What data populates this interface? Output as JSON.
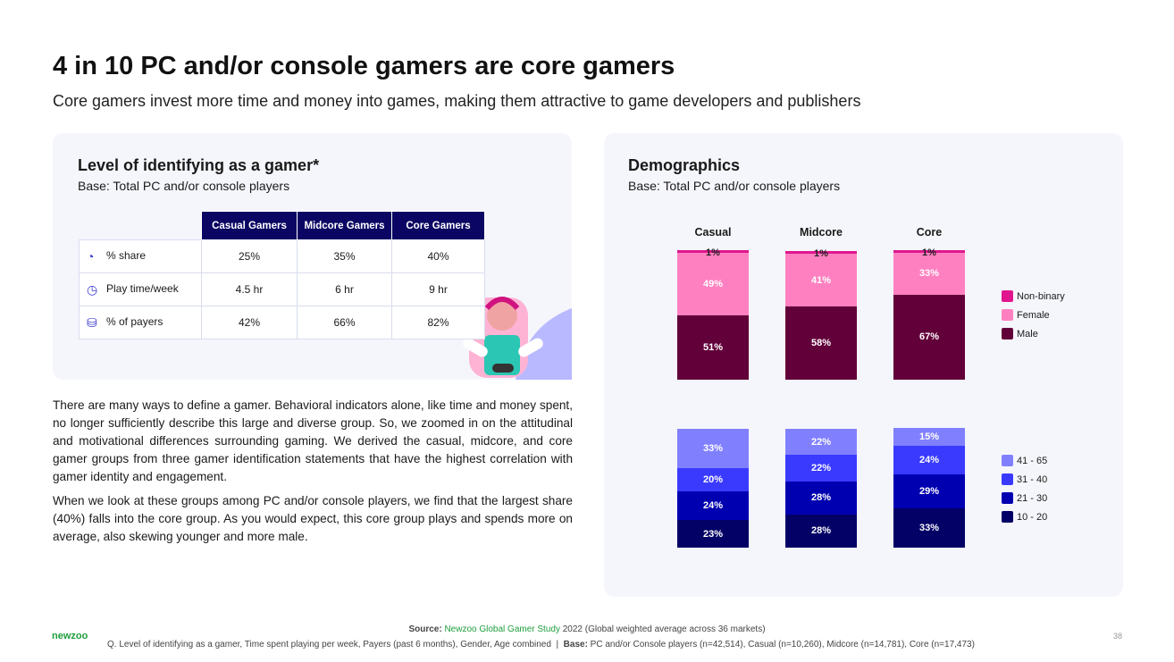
{
  "title": "4 in 10 PC and/or console gamers are core gamers",
  "subtitle": "Core gamers invest more time and money into games, making them attractive to game developers and publishers",
  "left_card": {
    "title": "Level of identifying as a gamer*",
    "base": "Base: Total PC and/or console players",
    "table": {
      "headers": [
        "Casual Gamers",
        "Midcore Gamers",
        "Core Gamers"
      ],
      "rows": [
        {
          "icon": "pie-chart-icon",
          "label": "% share",
          "values": [
            "25%",
            "35%",
            "40%"
          ]
        },
        {
          "icon": "clock-icon",
          "label": "Play time/week",
          "values": [
            "4.5 hr",
            "6 hr",
            "9 hr"
          ]
        },
        {
          "icon": "coins-icon",
          "label": "% of payers",
          "values": [
            "42%",
            "66%",
            "82%"
          ]
        }
      ]
    }
  },
  "body": [
    "There are many ways to define a gamer. Behavioral indicators alone, like time and money spent, no longer sufficiently describe this large and diverse group. So, we zoomed in on the attitudinal and motivational differences surrounding gaming. We derived the casual, midcore, and core gamer groups from three gamer identification statements that have the highest correlation with gamer identity and engagement.",
    "When we look at these groups among PC and/or console players, we find that the largest share (40%) falls into the core group. As you would expect, this core group plays and spends more on average, also skewing younger and more male."
  ],
  "right_card": {
    "title": "Demographics",
    "base": "Base: Total PC and/or console players"
  },
  "chart_data": [
    {
      "type": "bar",
      "stacked": true,
      "categories": [
        "Casual",
        "Midcore",
        "Core"
      ],
      "ylim": [
        0,
        100
      ],
      "series": [
        {
          "name": "Male",
          "color": "#62003a",
          "values": [
            51,
            58,
            67
          ]
        },
        {
          "name": "Female",
          "color": "#ff80c0",
          "values": [
            49,
            41,
            33
          ]
        },
        {
          "name": "Non-binary",
          "color": "#e0168f",
          "values": [
            1,
            1,
            1
          ]
        }
      ],
      "legend": "right"
    },
    {
      "type": "bar",
      "stacked": true,
      "categories": [
        "Casual",
        "Midcore",
        "Core"
      ],
      "ylim": [
        0,
        100
      ],
      "series": [
        {
          "name": "10 - 20",
          "color": "#030066",
          "values": [
            23,
            28,
            33
          ]
        },
        {
          "name": "21 - 30",
          "color": "#0000b0",
          "values": [
            24,
            28,
            29
          ]
        },
        {
          "name": "31 - 40",
          "color": "#3a3aff",
          "values": [
            20,
            22,
            24
          ]
        },
        {
          "name": "41 - 65",
          "color": "#8080ff",
          "values": [
            33,
            22,
            15
          ]
        }
      ],
      "legend": "right"
    }
  ],
  "footer": {
    "source_label": "Source:",
    "source_link": "Newzoo Global Gamer Study",
    "source_rest": " 2022 (Global weighted average across 36 markets)",
    "q": "Q. Level of identifying as a gamer, Time spent playing per week, Payers (past 6 months), Gender, Age combined  |  ",
    "base_label": "Base:",
    "base_rest": " PC and/or Console players (n=42,514),  Casual (n=10,260), Midcore (n=14,781), Core (n=17,473)",
    "logo": "newzoo",
    "page": "38"
  }
}
